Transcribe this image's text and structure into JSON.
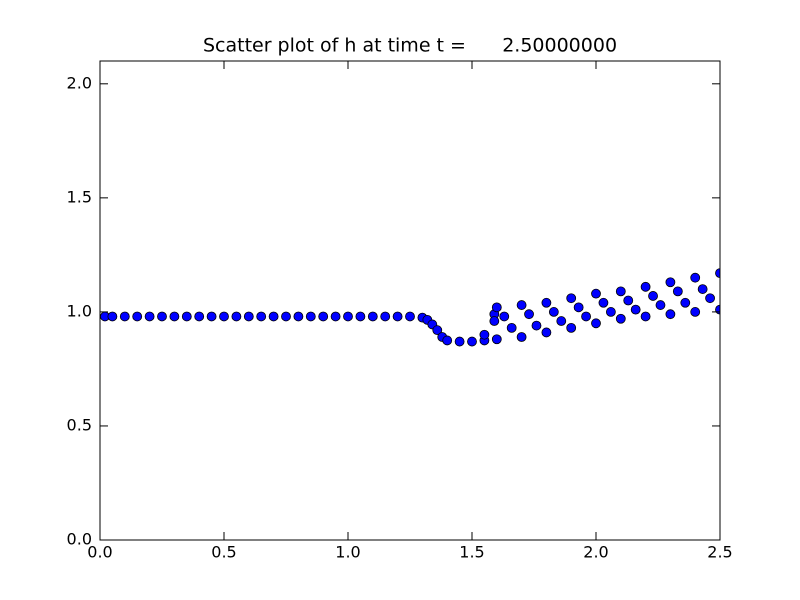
{
  "chart_data": {
    "type": "scatter",
    "title": "Scatter plot of h at time t =      2.50000000",
    "x": [
      0.02,
      0.05,
      0.1,
      0.15,
      0.2,
      0.25,
      0.3,
      0.35,
      0.4,
      0.45,
      0.5,
      0.55,
      0.6,
      0.65,
      0.7,
      0.75,
      0.8,
      0.85,
      0.9,
      0.95,
      1.0,
      1.05,
      1.1,
      1.15,
      1.2,
      1.25,
      1.3,
      1.32,
      1.34,
      1.36,
      1.38,
      1.4,
      1.45,
      1.5,
      1.55,
      1.55,
      1.59,
      1.59,
      1.6,
      1.7,
      1.8,
      1.9,
      2.0,
      2.1,
      2.2,
      2.3,
      2.4,
      2.5,
      1.6,
      1.7,
      1.8,
      1.9,
      2.0,
      2.1,
      2.2,
      2.3,
      2.4,
      2.5,
      1.63,
      1.66,
      1.73,
      1.76,
      1.83,
      1.86,
      1.93,
      1.96,
      2.03,
      2.06,
      2.13,
      2.16,
      2.23,
      2.26,
      2.33,
      2.36,
      2.43,
      2.46
    ],
    "y": [
      0.98,
      0.98,
      0.98,
      0.98,
      0.98,
      0.98,
      0.98,
      0.98,
      0.98,
      0.98,
      0.98,
      0.98,
      0.98,
      0.98,
      0.98,
      0.98,
      0.98,
      0.98,
      0.98,
      0.98,
      0.98,
      0.98,
      0.98,
      0.98,
      0.98,
      0.98,
      0.975,
      0.965,
      0.945,
      0.92,
      0.89,
      0.875,
      0.87,
      0.87,
      0.875,
      0.9,
      0.99,
      0.96,
      0.88,
      0.89,
      0.91,
      0.93,
      0.95,
      0.97,
      0.98,
      0.99,
      1.0,
      1.01,
      1.02,
      1.03,
      1.04,
      1.06,
      1.08,
      1.09,
      1.11,
      1.13,
      1.15,
      1.17,
      0.98,
      0.93,
      0.99,
      0.94,
      1.0,
      0.96,
      1.02,
      0.98,
      1.04,
      1.0,
      1.05,
      1.01,
      1.07,
      1.03,
      1.09,
      1.04,
      1.1,
      1.06
    ],
    "color": "#0000ff",
    "edgecolor": "#000000",
    "xlim": [
      0,
      2.5
    ],
    "ylim": [
      0,
      2.1
    ],
    "xticks": [
      {
        "value": 0,
        "label": "0.0"
      },
      {
        "value": 0.5,
        "label": "0.5"
      },
      {
        "value": 1,
        "label": "1.0"
      },
      {
        "value": 1.5,
        "label": "1.5"
      },
      {
        "value": 2,
        "label": "2.0"
      },
      {
        "value": 2.5,
        "label": "2.5"
      }
    ],
    "yticks": [
      {
        "value": 0,
        "label": "0.0"
      },
      {
        "value": 0.5,
        "label": "0.5"
      },
      {
        "value": 1,
        "label": "1.0"
      },
      {
        "value": 1.5,
        "label": "1.5"
      },
      {
        "value": 2,
        "label": "2.0"
      }
    ],
    "grid": false
  }
}
